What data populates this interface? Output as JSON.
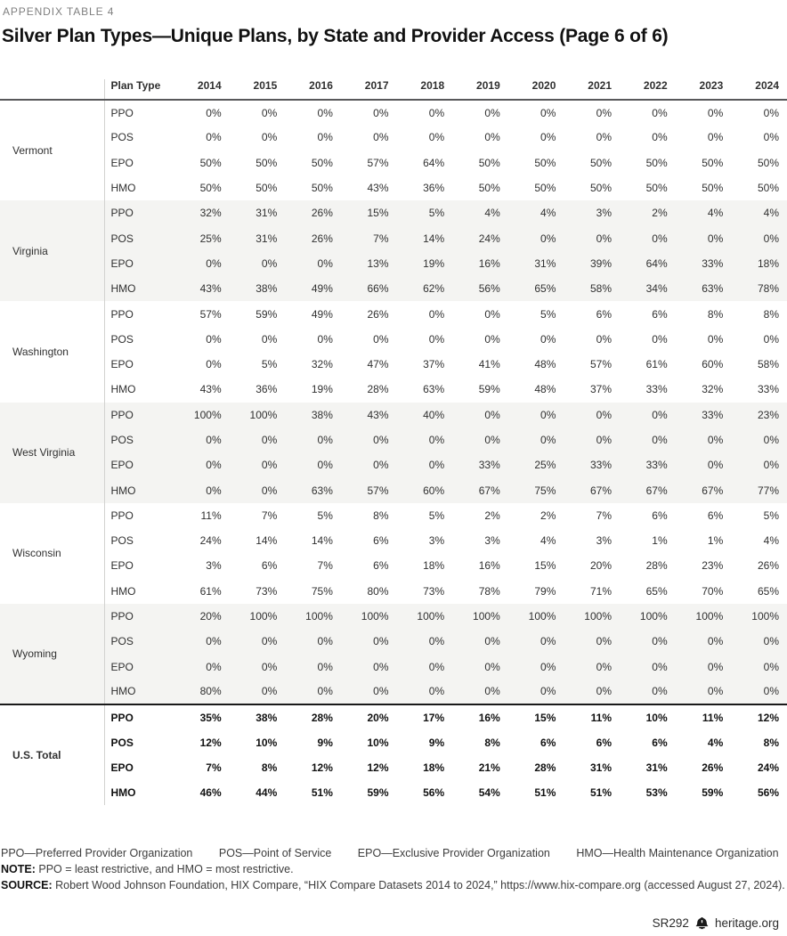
{
  "header": {
    "eyebrow": "APPENDIX TABLE 4",
    "title": "Silver Plan Types—Unique Plans, by State and Provider Access (Page 6 of 6)"
  },
  "table": {
    "plan_type_header": "Plan Type",
    "years": [
      "2014",
      "2015",
      "2016",
      "2017",
      "2018",
      "2019",
      "2020",
      "2021",
      "2022",
      "2023",
      "2024"
    ],
    "groups": [
      {
        "state": "Vermont",
        "shaded": false,
        "rows": [
          {
            "plan": "PPO",
            "values": [
              "0%",
              "0%",
              "0%",
              "0%",
              "0%",
              "0%",
              "0%",
              "0%",
              "0%",
              "0%",
              "0%"
            ]
          },
          {
            "plan": "POS",
            "values": [
              "0%",
              "0%",
              "0%",
              "0%",
              "0%",
              "0%",
              "0%",
              "0%",
              "0%",
              "0%",
              "0%"
            ]
          },
          {
            "plan": "EPO",
            "values": [
              "50%",
              "50%",
              "50%",
              "57%",
              "64%",
              "50%",
              "50%",
              "50%",
              "50%",
              "50%",
              "50%"
            ]
          },
          {
            "plan": "HMO",
            "values": [
              "50%",
              "50%",
              "50%",
              "43%",
              "36%",
              "50%",
              "50%",
              "50%",
              "50%",
              "50%",
              "50%"
            ]
          }
        ]
      },
      {
        "state": "Virginia",
        "shaded": true,
        "rows": [
          {
            "plan": "PPO",
            "values": [
              "32%",
              "31%",
              "26%",
              "15%",
              "5%",
              "4%",
              "4%",
              "3%",
              "2%",
              "4%",
              "4%"
            ]
          },
          {
            "plan": "POS",
            "values": [
              "25%",
              "31%",
              "26%",
              "7%",
              "14%",
              "24%",
              "0%",
              "0%",
              "0%",
              "0%",
              "0%"
            ]
          },
          {
            "plan": "EPO",
            "values": [
              "0%",
              "0%",
              "0%",
              "13%",
              "19%",
              "16%",
              "31%",
              "39%",
              "64%",
              "33%",
              "18%"
            ]
          },
          {
            "plan": "HMO",
            "values": [
              "43%",
              "38%",
              "49%",
              "66%",
              "62%",
              "56%",
              "65%",
              "58%",
              "34%",
              "63%",
              "78%"
            ]
          }
        ]
      },
      {
        "state": "Washington",
        "shaded": false,
        "rows": [
          {
            "plan": "PPO",
            "values": [
              "57%",
              "59%",
              "49%",
              "26%",
              "0%",
              "0%",
              "5%",
              "6%",
              "6%",
              "8%",
              "8%"
            ]
          },
          {
            "plan": "POS",
            "values": [
              "0%",
              "0%",
              "0%",
              "0%",
              "0%",
              "0%",
              "0%",
              "0%",
              "0%",
              "0%",
              "0%"
            ]
          },
          {
            "plan": "EPO",
            "values": [
              "0%",
              "5%",
              "32%",
              "47%",
              "37%",
              "41%",
              "48%",
              "57%",
              "61%",
              "60%",
              "58%"
            ]
          },
          {
            "plan": "HMO",
            "values": [
              "43%",
              "36%",
              "19%",
              "28%",
              "63%",
              "59%",
              "48%",
              "37%",
              "33%",
              "32%",
              "33%"
            ]
          }
        ]
      },
      {
        "state": "West Virginia",
        "shaded": true,
        "rows": [
          {
            "plan": "PPO",
            "values": [
              "100%",
              "100%",
              "38%",
              "43%",
              "40%",
              "0%",
              "0%",
              "0%",
              "0%",
              "33%",
              "23%"
            ]
          },
          {
            "plan": "POS",
            "values": [
              "0%",
              "0%",
              "0%",
              "0%",
              "0%",
              "0%",
              "0%",
              "0%",
              "0%",
              "0%",
              "0%"
            ]
          },
          {
            "plan": "EPO",
            "values": [
              "0%",
              "0%",
              "0%",
              "0%",
              "0%",
              "33%",
              "25%",
              "33%",
              "33%",
              "0%",
              "0%"
            ]
          },
          {
            "plan": "HMO",
            "values": [
              "0%",
              "0%",
              "63%",
              "57%",
              "60%",
              "67%",
              "75%",
              "67%",
              "67%",
              "67%",
              "77%"
            ]
          }
        ]
      },
      {
        "state": "Wisconsin",
        "shaded": false,
        "rows": [
          {
            "plan": "PPO",
            "values": [
              "11%",
              "7%",
              "5%",
              "8%",
              "5%",
              "2%",
              "2%",
              "7%",
              "6%",
              "6%",
              "5%"
            ]
          },
          {
            "plan": "POS",
            "values": [
              "24%",
              "14%",
              "14%",
              "6%",
              "3%",
              "3%",
              "4%",
              "3%",
              "1%",
              "1%",
              "4%"
            ]
          },
          {
            "plan": "EPO",
            "values": [
              "3%",
              "6%",
              "7%",
              "6%",
              "18%",
              "16%",
              "15%",
              "20%",
              "28%",
              "23%",
              "26%"
            ]
          },
          {
            "plan": "HMO",
            "values": [
              "61%",
              "73%",
              "75%",
              "80%",
              "73%",
              "78%",
              "79%",
              "71%",
              "65%",
              "70%",
              "65%"
            ]
          }
        ]
      },
      {
        "state": "Wyoming",
        "shaded": true,
        "rows": [
          {
            "plan": "PPO",
            "values": [
              "20%",
              "100%",
              "100%",
              "100%",
              "100%",
              "100%",
              "100%",
              "100%",
              "100%",
              "100%",
              "100%"
            ]
          },
          {
            "plan": "POS",
            "values": [
              "0%",
              "0%",
              "0%",
              "0%",
              "0%",
              "0%",
              "0%",
              "0%",
              "0%",
              "0%",
              "0%"
            ]
          },
          {
            "plan": "EPO",
            "values": [
              "0%",
              "0%",
              "0%",
              "0%",
              "0%",
              "0%",
              "0%",
              "0%",
              "0%",
              "0%",
              "0%"
            ]
          },
          {
            "plan": "HMO",
            "values": [
              "80%",
              "0%",
              "0%",
              "0%",
              "0%",
              "0%",
              "0%",
              "0%",
              "0%",
              "0%",
              "0%"
            ]
          }
        ]
      }
    ],
    "total": {
      "state": "U.S. Total",
      "rows": [
        {
          "plan": "PPO",
          "values": [
            "35%",
            "38%",
            "28%",
            "20%",
            "17%",
            "16%",
            "15%",
            "11%",
            "10%",
            "11%",
            "12%"
          ]
        },
        {
          "plan": "POS",
          "values": [
            "12%",
            "10%",
            "9%",
            "10%",
            "9%",
            "8%",
            "6%",
            "6%",
            "6%",
            "4%",
            "8%"
          ]
        },
        {
          "plan": "EPO",
          "values": [
            "7%",
            "8%",
            "12%",
            "12%",
            "18%",
            "21%",
            "28%",
            "31%",
            "31%",
            "26%",
            "24%"
          ]
        },
        {
          "plan": "HMO",
          "values": [
            "46%",
            "44%",
            "51%",
            "59%",
            "56%",
            "54%",
            "51%",
            "51%",
            "53%",
            "59%",
            "56%"
          ]
        }
      ]
    }
  },
  "footnotes": {
    "legend": [
      "PPO—Preferred Provider Organization",
      "POS—Point of Service",
      "EPO—Exclusive Provider Organization",
      "HMO—Health Maintenance Organization"
    ],
    "note_label": "NOTE:",
    "note": "PPO = least restrictive, and HMO = most restrictive.",
    "source_label": "SOURCE:",
    "source": "Robert Wood Johnson Foundation, HIX Compare, “HIX Compare Datasets 2014 to 2024,” https://www.hix-compare.org (accessed August 27, 2024)."
  },
  "footer": {
    "report_id": "SR292",
    "site": "heritage.org",
    "logo_icon": "liberty-bell-icon"
  },
  "colors": {
    "shaded_row": "#f4f4f2",
    "header_rule": "#58585a",
    "total_rule": "#1a1a1a",
    "divider": "#d2d2d0"
  }
}
